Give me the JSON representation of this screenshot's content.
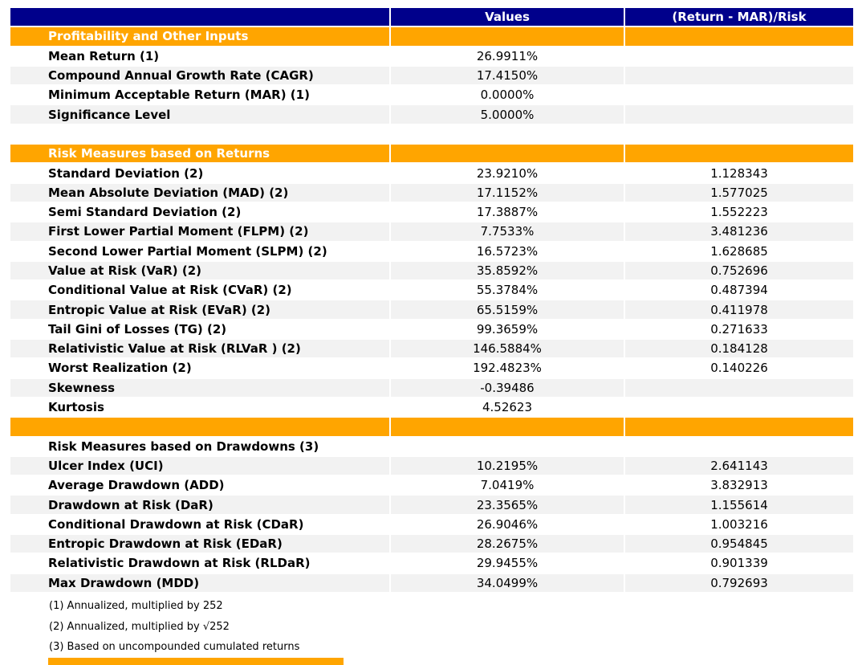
{
  "colors": {
    "header_bg": "#00008B",
    "section_bg": "#FFA500",
    "stripe_bg": "#F2F2F2",
    "header_text": "#FFFFFF",
    "text": "#000000"
  },
  "table": {
    "header": {
      "col1": "",
      "col2": "Values",
      "col3": "(Return - MAR)/Risk"
    },
    "rows": [
      {
        "type": "section",
        "shade": false,
        "label": "Profitability and Other Inputs",
        "value": "",
        "risk": ""
      },
      {
        "type": "data",
        "shade": false,
        "label": "Mean Return (1)",
        "value": "26.9911%",
        "risk": ""
      },
      {
        "type": "data",
        "shade": true,
        "label": "Compound Annual Growth Rate (CAGR)",
        "value": "17.4150%",
        "risk": ""
      },
      {
        "type": "data",
        "shade": false,
        "label": "Minimum Acceptable Return (MAR) (1)",
        "value": "0.0000%",
        "risk": ""
      },
      {
        "type": "data",
        "shade": true,
        "label": "Significance Level",
        "value": "5.0000%",
        "risk": ""
      },
      {
        "type": "spacer",
        "shade": false,
        "label": "",
        "value": "",
        "risk": ""
      },
      {
        "type": "section",
        "shade": false,
        "label": "Risk Measures based on Returns",
        "value": "",
        "risk": ""
      },
      {
        "type": "data",
        "shade": false,
        "label": "Standard Deviation (2)",
        "value": "23.9210%",
        "risk": "1.128343"
      },
      {
        "type": "data",
        "shade": true,
        "label": "Mean Absolute Deviation (MAD) (2)",
        "value": "17.1152%",
        "risk": "1.577025"
      },
      {
        "type": "data",
        "shade": false,
        "label": "Semi Standard Deviation (2)",
        "value": "17.3887%",
        "risk": "1.552223"
      },
      {
        "type": "data",
        "shade": true,
        "label": "First Lower Partial Moment (FLPM) (2)",
        "value": "7.7533%",
        "risk": "3.481236"
      },
      {
        "type": "data",
        "shade": false,
        "label": "Second Lower Partial Moment (SLPM) (2)",
        "value": "16.5723%",
        "risk": "1.628685"
      },
      {
        "type": "data",
        "shade": true,
        "label": "Value at Risk (VaR) (2)",
        "value": "35.8592%",
        "risk": "0.752696"
      },
      {
        "type": "data",
        "shade": false,
        "label": "Conditional Value at Risk (CVaR) (2)",
        "value": "55.3784%",
        "risk": "0.487394"
      },
      {
        "type": "data",
        "shade": true,
        "label": "Entropic Value at Risk (EVaR) (2)",
        "value": "65.5159%",
        "risk": "0.411978"
      },
      {
        "type": "data",
        "shade": false,
        "label": "Tail Gini of Losses (TG) (2)",
        "value": "99.3659%",
        "risk": "0.271633"
      },
      {
        "type": "data",
        "shade": true,
        "label": "Relativistic Value at Risk (RLVaR ) (2)",
        "value": "146.5884%",
        "risk": "0.184128"
      },
      {
        "type": "data",
        "shade": false,
        "label": "Worst Realization (2)",
        "value": "192.4823%",
        "risk": "0.140226"
      },
      {
        "type": "data",
        "shade": true,
        "label": "Skewness",
        "value": "-0.39486",
        "risk": ""
      },
      {
        "type": "data",
        "shade": false,
        "label": "Kurtosis",
        "value": "4.52623",
        "risk": ""
      },
      {
        "type": "section",
        "shade": false,
        "label": "",
        "value": "",
        "risk": ""
      },
      {
        "type": "subheader",
        "shade": false,
        "label": "Risk Measures based on Drawdowns (3)",
        "value": "",
        "risk": ""
      },
      {
        "type": "data",
        "shade": true,
        "label": "Ulcer Index (UCI)",
        "value": "10.2195%",
        "risk": "2.641143"
      },
      {
        "type": "data",
        "shade": false,
        "label": "Average Drawdown (ADD)",
        "value": "7.0419%",
        "risk": "3.832913"
      },
      {
        "type": "data",
        "shade": true,
        "label": "Drawdown at Risk (DaR)",
        "value": "23.3565%",
        "risk": "1.155614"
      },
      {
        "type": "data",
        "shade": false,
        "label": "Conditional Drawdown at Risk (CDaR)",
        "value": "26.9046%",
        "risk": "1.003216"
      },
      {
        "type": "data",
        "shade": true,
        "label": "Entropic Drawdown at Risk (EDaR)",
        "value": "28.2675%",
        "risk": "0.954845"
      },
      {
        "type": "data",
        "shade": false,
        "label": "Relativistic Drawdown at Risk (RLDaR)",
        "value": "29.9455%",
        "risk": "0.901339"
      },
      {
        "type": "data",
        "shade": true,
        "label": "Max Drawdown (MDD)",
        "value": "34.0499%",
        "risk": "0.792693"
      }
    ]
  },
  "footnotes": [
    "(1) Annualized, multiplied by 252",
    "(2) Annualized, multiplied by √252",
    "(3) Based on uncompounded cumulated returns"
  ]
}
